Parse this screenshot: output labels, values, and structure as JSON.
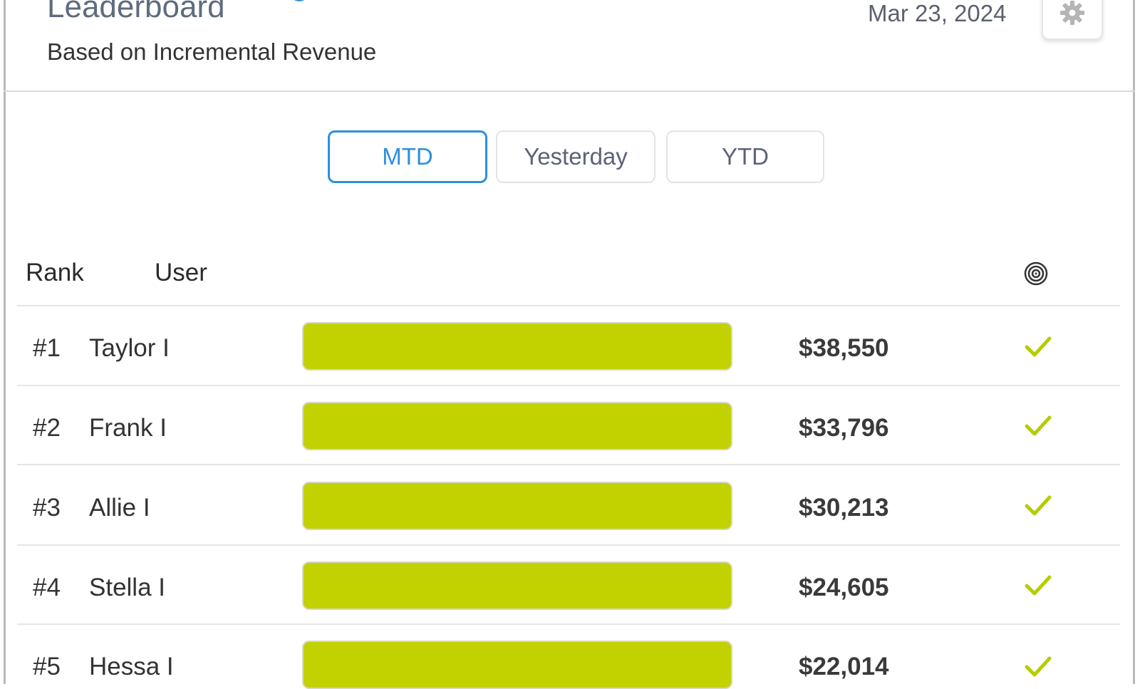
{
  "header": {
    "title": "Leaderboard",
    "subtitle": "Based on Incremental Revenue",
    "date": "Mar 23, 2024"
  },
  "tabs": [
    {
      "label": "MTD",
      "active": true
    },
    {
      "label": "Yesterday",
      "active": false
    },
    {
      "label": "YTD",
      "active": false
    }
  ],
  "table": {
    "columns": {
      "rank": "Rank",
      "user": "User",
      "target_icon": "target-icon"
    },
    "rows": [
      {
        "rank": "#1",
        "user": "Taylor I",
        "amount": "$38,550",
        "progress": 1.0,
        "status_icon": "check-icon"
      },
      {
        "rank": "#2",
        "user": "Frank I",
        "amount": "$33,796",
        "progress": 1.0,
        "status_icon": "check-icon"
      },
      {
        "rank": "#3",
        "user": "Allie I",
        "amount": "$30,213",
        "progress": 1.0,
        "status_icon": "check-icon"
      },
      {
        "rank": "#4",
        "user": "Stella I",
        "amount": "$24,605",
        "progress": 1.0,
        "status_icon": "check-icon"
      },
      {
        "rank": "#5",
        "user": "Hessa I",
        "amount": "$22,014",
        "progress": 1.0,
        "status_icon": "check-icon"
      }
    ]
  },
  "colors": {
    "accent": "#2d8fde",
    "bar": "#c2d100",
    "check": "#b5cc00",
    "title": "#5f6b7e"
  }
}
